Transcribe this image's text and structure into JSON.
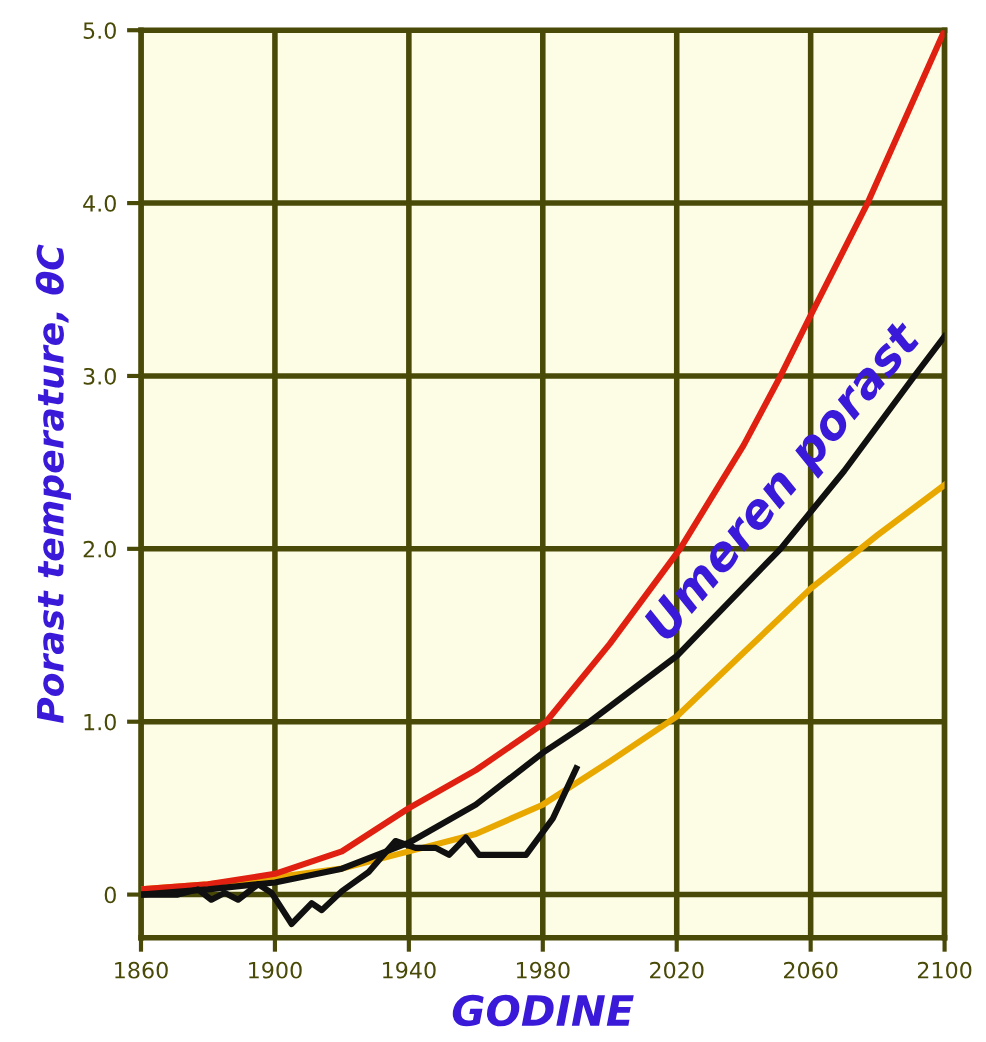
{
  "chart_data": {
    "type": "line",
    "xlabel": "GODINE",
    "ylabel": "Porast temperature, θC",
    "xlim": [
      1860,
      2100
    ],
    "ylim": [
      -0.25,
      5.0
    ],
    "xticks": [
      1860,
      1900,
      1940,
      1980,
      2020,
      2060,
      2100
    ],
    "yticks": [
      0,
      {
        "value": 1,
        "label": "1.0"
      },
      {
        "value": 2,
        "label": "2.0"
      },
      {
        "value": 3,
        "label": "3.0"
      },
      {
        "value": 4,
        "label": "4.0"
      },
      {
        "value": 5,
        "label": "5.0"
      }
    ],
    "grid": true,
    "line_style": "solid",
    "marker": "none",
    "series": [
      {
        "color": "#e8a800",
        "x": [
          1860,
          1880,
          1900,
          1920,
          1940,
          1960,
          1980,
          2000,
          2020,
          2040,
          2060,
          2080,
          2100
        ],
        "values": [
          0.03,
          0.06,
          0.1,
          0.15,
          0.25,
          0.35,
          0.52,
          0.77,
          1.03,
          1.4,
          1.77,
          2.08,
          2.37
        ]
      },
      {
        "color": "#e02010",
        "x": [
          1860,
          1880,
          1900,
          1920,
          1940,
          1960,
          1981,
          2000,
          2021,
          2040,
          2051,
          2060,
          2077,
          2100
        ],
        "values": [
          0.03,
          0.06,
          0.12,
          0.25,
          0.5,
          0.72,
          1.0,
          1.45,
          2.0,
          2.6,
          3.0,
          3.35,
          4.0,
          5.0
        ]
      },
      {
        "color": "#101010",
        "x": [
          1860,
          1880,
          1900,
          1920,
          1940,
          1960,
          1980,
          1994,
          2020,
          2051,
          2070,
          2091,
          2100
        ],
        "values": [
          0.0,
          0.03,
          0.07,
          0.15,
          0.3,
          0.52,
          0.82,
          1.0,
          1.38,
          2.0,
          2.45,
          3.0,
          3.23
        ]
      },
      {
        "color": "#101010",
        "x": [
          1860,
          1871,
          1877,
          1881,
          1885,
          1889,
          1895,
          1899,
          1905,
          1911,
          1914,
          1920,
          1928,
          1936,
          1942,
          1948,
          1952,
          1957,
          1961,
          1975,
          1983,
          1990
        ],
        "values": [
          0.0,
          0.0,
          0.03,
          -0.03,
          0.01,
          -0.03,
          0.06,
          0.01,
          -0.17,
          -0.05,
          -0.09,
          0.02,
          0.13,
          0.31,
          0.27,
          0.27,
          0.23,
          0.33,
          0.23,
          0.23,
          0.44,
          0.73
        ]
      }
    ],
    "annotations": [
      "Umeren porast"
    ]
  }
}
